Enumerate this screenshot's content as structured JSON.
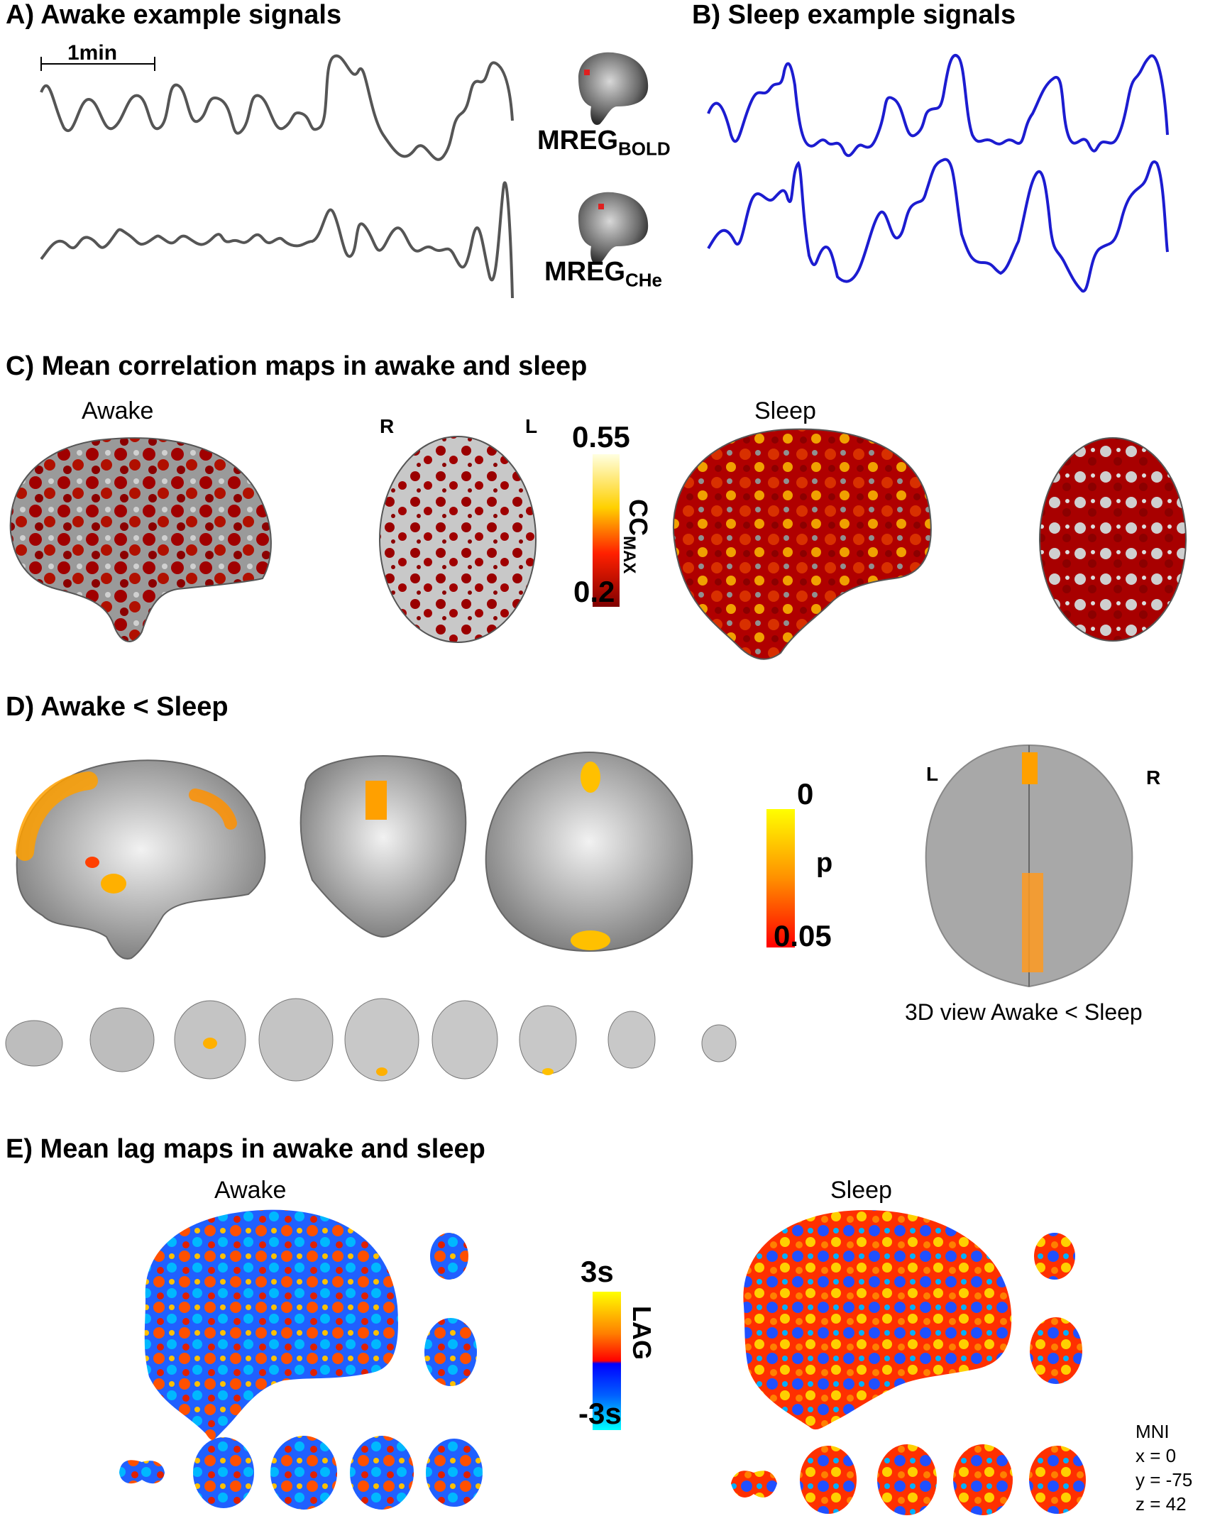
{
  "panel_a": {
    "title": "A) Awake example signals",
    "scale_label": "1min"
  },
  "panel_b": {
    "title": "B) Sleep example signals"
  },
  "signals": {
    "bold_label": "MREG",
    "bold_sub": "BOLD",
    "che_label": "MREG",
    "che_sub": "CHe"
  },
  "panel_c": {
    "title": "C) Mean correlation maps in awake and sleep",
    "awake_label": "Awake",
    "sleep_label": "Sleep",
    "r_label": "R",
    "l_label": "L",
    "colorbar": {
      "max": "0.55",
      "min": "0.2",
      "label": "CC",
      "label_sub": "MAX"
    }
  },
  "panel_d": {
    "title": "D) Awake < Sleep",
    "colorbar": {
      "max": "0",
      "min": "0.05",
      "label": "p"
    },
    "l_label": "L",
    "r_label": "R",
    "view3d_caption": "3D view Awake < Sleep"
  },
  "panel_e": {
    "title": "E) Mean lag maps in awake and sleep",
    "awake_label": "Awake",
    "sleep_label": "Sleep",
    "colorbar": {
      "max": "3s",
      "min": "-3s",
      "label": "LAG"
    }
  },
  "mni": {
    "title": "MNI",
    "x": "x = 0",
    "y": "y = -75",
    "z": "z = 42"
  },
  "colors": {
    "awake_trace": "#555555",
    "sleep_trace": "#1c1cd0",
    "cc_dark": "#8b0000",
    "cc_light": "#ffffc0"
  }
}
